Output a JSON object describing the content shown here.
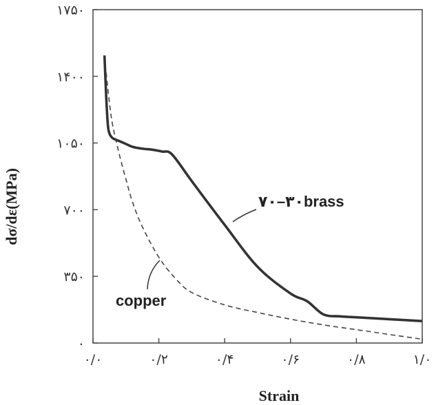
{
  "chart_data": {
    "type": "line",
    "xlabel": "Strain",
    "ylabel": "dσ/dε(MPa)",
    "xlim": [
      0.0,
      1.0
    ],
    "ylim": [
      0,
      1750
    ],
    "xticks": [
      {
        "value": 0.0,
        "label": "۰/۰"
      },
      {
        "value": 0.2,
        "label": "۰/۲"
      },
      {
        "value": 0.4,
        "label": "۰/۴"
      },
      {
        "value": 0.6,
        "label": "۰/۶"
      },
      {
        "value": 0.8,
        "label": "۰/۸"
      },
      {
        "value": 1.0,
        "label": "۱/۰"
      }
    ],
    "yticks": [
      {
        "value": 0,
        "label": "۰"
      },
      {
        "value": 350,
        "label": "۳۵۰"
      },
      {
        "value": 700,
        "label": "۷۰۰"
      },
      {
        "value": 1050,
        "label": "۱۰۵۰"
      },
      {
        "value": 1400,
        "label": "۱۴۰۰"
      },
      {
        "value": 1750,
        "label": "۱۷۵۰"
      }
    ],
    "grid": false,
    "series": [
      {
        "name": "۷۰–۳۰brass",
        "style": "solid",
        "color": "#333333",
        "x": [
          0.035,
          0.04,
          0.045,
          0.05,
          0.06,
          0.08,
          0.1,
          0.12,
          0.15,
          0.18,
          0.21,
          0.24,
          0.3,
          0.4,
          0.5,
          0.6,
          0.65,
          0.7,
          0.75,
          0.8,
          0.9,
          1.0
        ],
        "y": [
          1510,
          1300,
          1150,
          1100,
          1075,
          1060,
          1045,
          1030,
          1020,
          1015,
          1005,
          990,
          850,
          620,
          400,
          260,
          220,
          150,
          140,
          135,
          125,
          115
        ]
      },
      {
        "name": "copper",
        "style": "dashed",
        "color": "#444444",
        "x": [
          0.04,
          0.05,
          0.06,
          0.08,
          0.1,
          0.12,
          0.15,
          0.2,
          0.25,
          0.3,
          0.4,
          0.5,
          0.6,
          0.7,
          0.8,
          0.9,
          1.0
        ],
        "y": [
          1420,
          1260,
          1140,
          990,
          860,
          740,
          610,
          450,
          340,
          265,
          200,
          160,
          125,
          95,
          70,
          45,
          20
        ]
      }
    ],
    "annotations": [
      {
        "text": "۷۰–۳۰brass",
        "target_x": 0.45,
        "target_y": 560
      },
      {
        "text": "copper",
        "target_x": 0.24,
        "target_y": 290
      }
    ]
  }
}
